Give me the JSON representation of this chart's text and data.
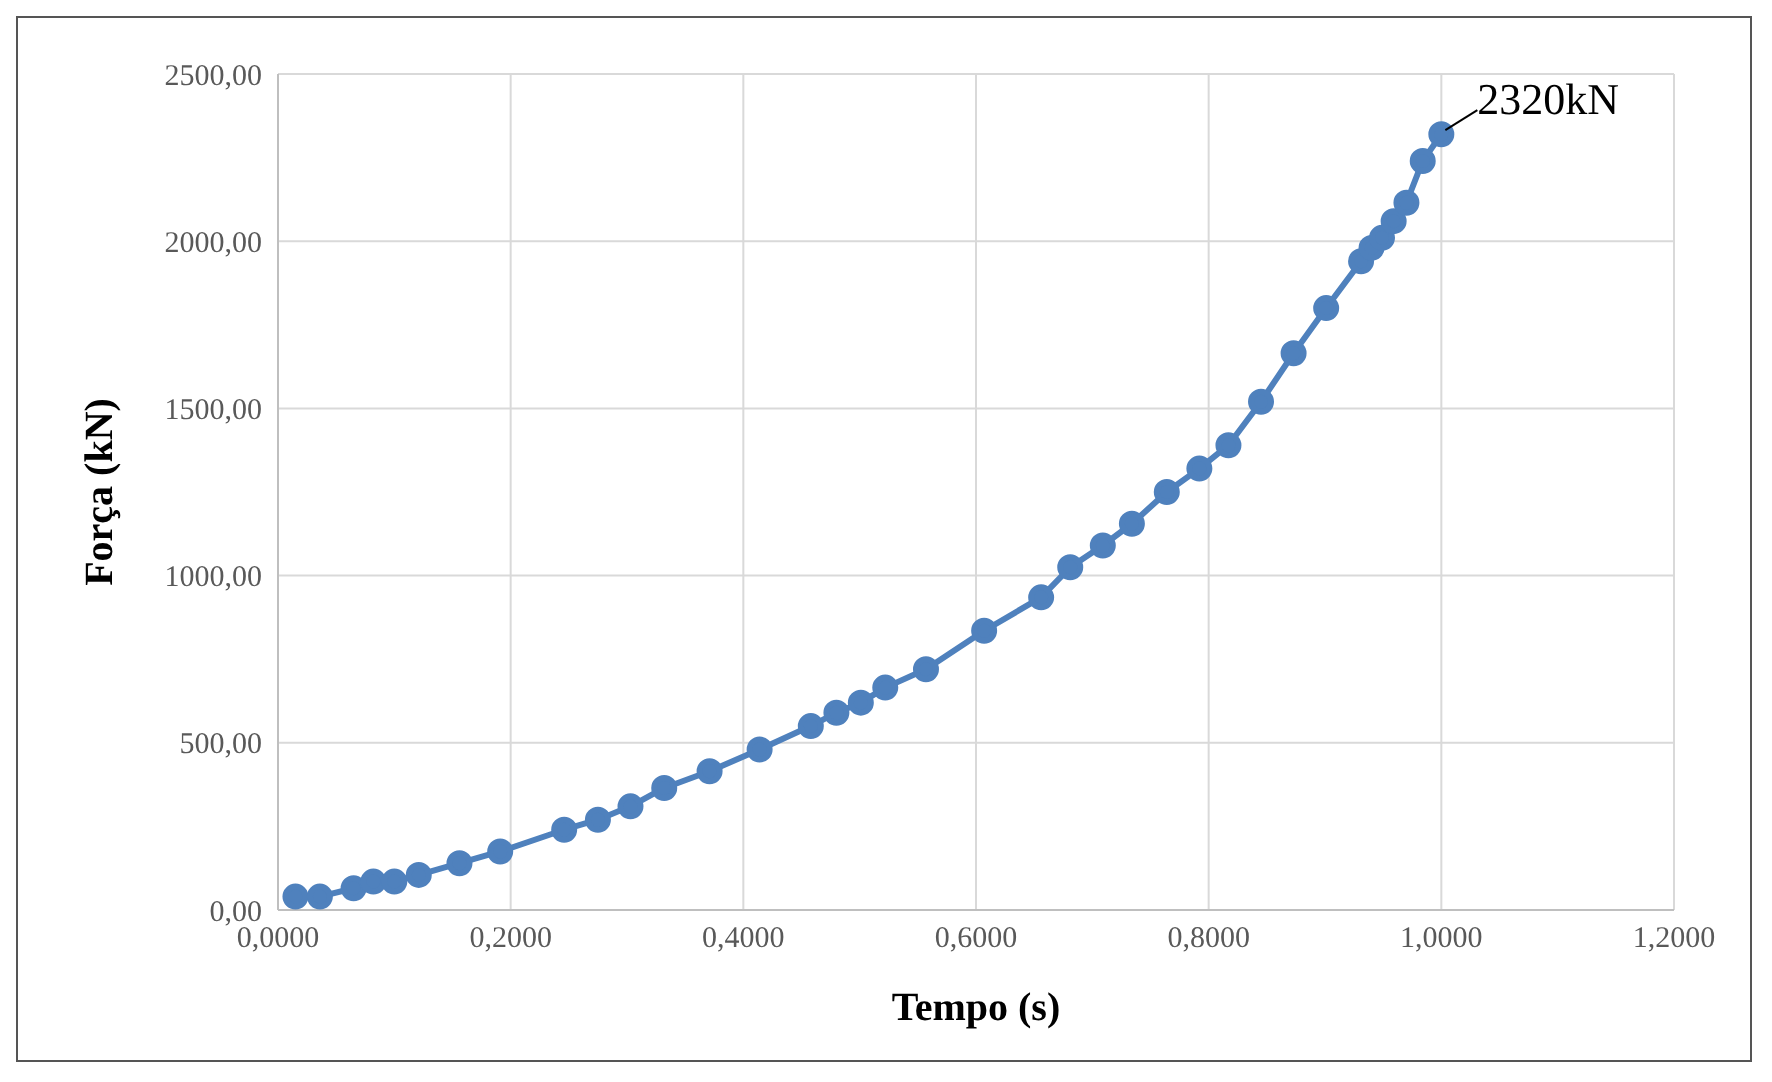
{
  "chart_data": {
    "type": "line",
    "xlabel": "Tempo (s)",
    "ylabel": "Força (kN)",
    "x": [
      0.015,
      0.036,
      0.065,
      0.082,
      0.1,
      0.121,
      0.156,
      0.191,
      0.246,
      0.275,
      0.303,
      0.332,
      0.371,
      0.414,
      0.458,
      0.48,
      0.501,
      0.522,
      0.557,
      0.607,
      0.656,
      0.681,
      0.709,
      0.734,
      0.764,
      0.792,
      0.817,
      0.845,
      0.873,
      0.901,
      0.931,
      0.94,
      0.949,
      0.959,
      0.97,
      0.984,
      1.0
    ],
    "series": [
      {
        "color": "#4f81bd",
        "values": [
          40,
          40,
          65,
          85,
          85,
          105,
          140,
          175,
          240,
          270,
          310,
          365,
          415,
          480,
          550,
          590,
          620,
          665,
          720,
          835,
          935,
          1025,
          1090,
          1155,
          1250,
          1320,
          1390,
          1520,
          1665,
          1800,
          1940,
          1980,
          2010,
          2060,
          2115,
          2240,
          2320
        ]
      }
    ],
    "xlim": [
      0,
      1.2
    ],
    "xticks": [
      {
        "value": 0,
        "label": "0,0000"
      },
      {
        "value": 0.2,
        "label": "0,2000"
      },
      {
        "value": 0.4,
        "label": "0,4000"
      },
      {
        "value": 0.6,
        "label": "0,6000"
      },
      {
        "value": 0.8,
        "label": "0,8000"
      },
      {
        "value": 1.0,
        "label": "1,0000"
      },
      {
        "value": 1.2,
        "label": "1,2000"
      }
    ],
    "ylim": [
      0,
      2500
    ],
    "yticks": [
      {
        "value": 0,
        "label": "0,00"
      },
      {
        "value": 500,
        "label": "500,00"
      },
      {
        "value": 1000,
        "label": "1000,00"
      },
      {
        "value": 1500,
        "label": "1500,00"
      },
      {
        "value": 2000,
        "label": "2000,00"
      },
      {
        "value": 2500,
        "label": "2500,00"
      }
    ],
    "annotations": [
      {
        "text": "2320kN",
        "x": 1.0,
        "y": 2320
      }
    ],
    "grid": true,
    "marker": "circle",
    "line_style": "solid",
    "legend": false
  }
}
